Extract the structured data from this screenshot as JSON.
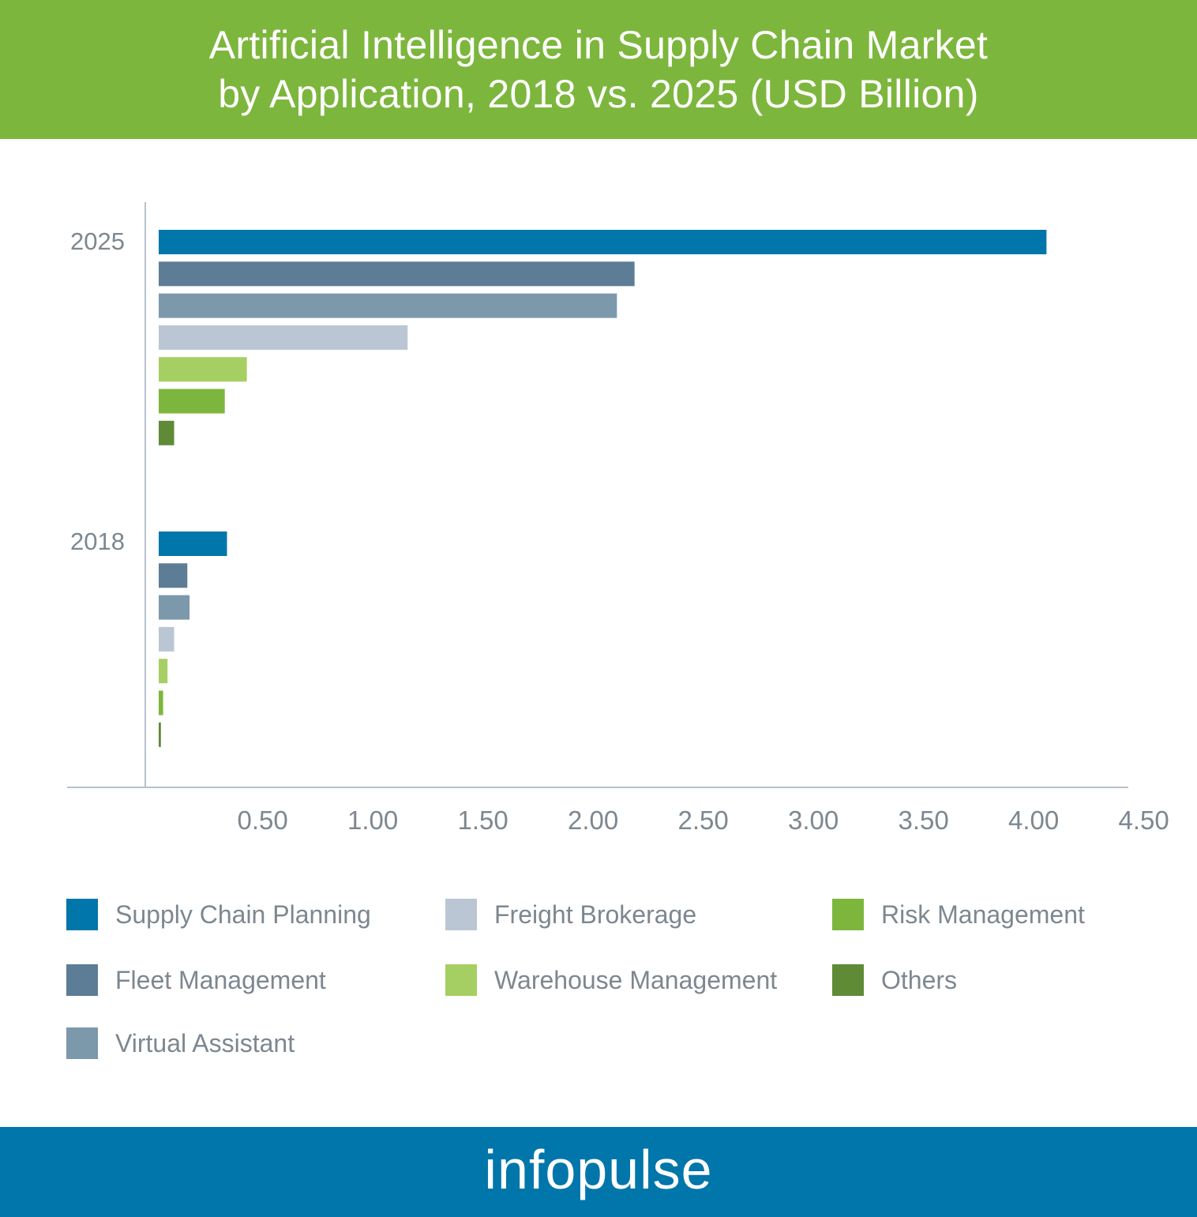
{
  "header": {
    "title_line1": "Artificial Intelligence in Supply Chain Market",
    "title_line2": "by Application, 2018 vs. 2025 (USD Billion)"
  },
  "chart_data": {
    "type": "bar",
    "orientation": "horizontal",
    "title": "Artificial Intelligence in Supply Chain Market by Application, 2018 vs. 2025 (USD Billion)",
    "categories": [
      "2025",
      "2018"
    ],
    "x_ticks": [
      "0.50",
      "1.00",
      "1.50",
      "2.00",
      "2.50",
      "3.00",
      "3.50",
      "4.00",
      "4.50"
    ],
    "xlim": [
      0.1,
      4.6
    ],
    "grid": false,
    "legend_position": "bottom",
    "series": [
      {
        "name": "Supply Chain Planning",
        "color": "#0076aa",
        "values": [
          4.13,
          0.41
        ]
      },
      {
        "name": "Fleet Management",
        "color": "#5d7c95",
        "values": [
          2.26,
          0.23
        ]
      },
      {
        "name": "Virtual Assistant",
        "color": "#7c98ab",
        "values": [
          2.18,
          0.24
        ]
      },
      {
        "name": "Freight Brokerage",
        "color": "#bac6d3",
        "values": [
          1.23,
          0.17
        ]
      },
      {
        "name": "Warehouse Management",
        "color": "#a6cf63",
        "values": [
          0.5,
          0.14
        ]
      },
      {
        "name": "Risk Management",
        "color": "#7db63d",
        "values": [
          0.4,
          0.12
        ]
      },
      {
        "name": "Others",
        "color": "#5f8a36",
        "values": [
          0.17,
          0.11
        ]
      }
    ]
  },
  "legend": {
    "items": [
      {
        "label": "Supply Chain Planning",
        "color": "#0076aa"
      },
      {
        "label": "Freight Brokerage",
        "color": "#bac6d3"
      },
      {
        "label": "Risk Management",
        "color": "#7db63d"
      },
      {
        "label": "Fleet Management",
        "color": "#5d7c95"
      },
      {
        "label": "Warehouse Management",
        "color": "#a6cf63"
      },
      {
        "label": "Others",
        "color": "#5f8a36"
      },
      {
        "label": "Virtual Assistant",
        "color": "#7c98ab"
      }
    ]
  },
  "footer": {
    "brand": "infopulse"
  }
}
